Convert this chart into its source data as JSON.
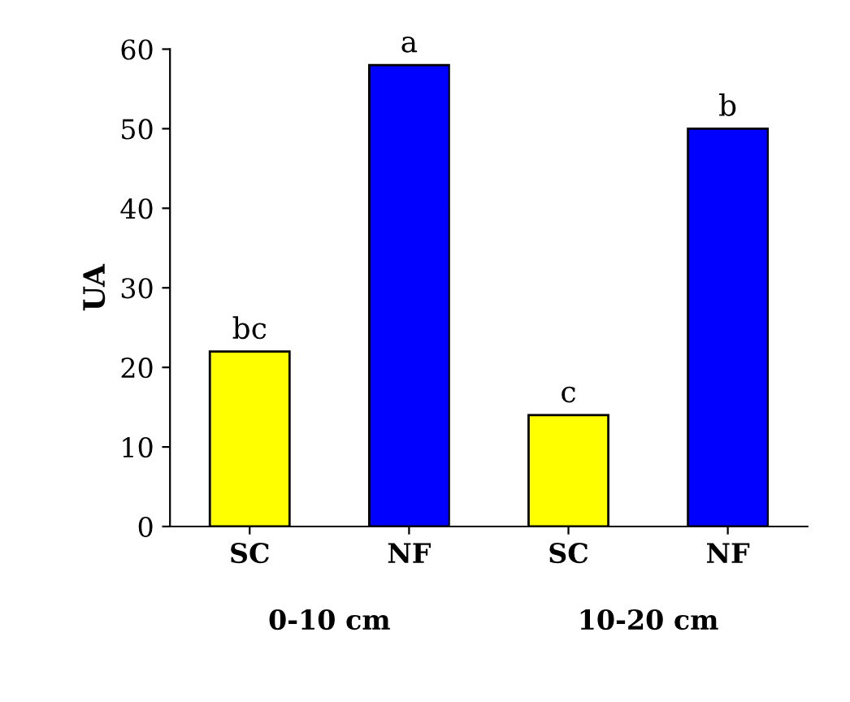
{
  "chart_data": {
    "type": "bar",
    "ylabel": "UA",
    "categories": [
      "SC",
      "NF",
      "SC",
      "NF"
    ],
    "values": [
      22,
      58,
      14,
      50
    ],
    "colors": [
      "#ffff00",
      "#0000ff",
      "#ffff00",
      "#0000ff"
    ],
    "value_labels": [
      "bc",
      "a",
      "c",
      "b"
    ],
    "annotations": [
      "0-10 cm",
      "10-20 cm"
    ],
    "ylim": [
      0,
      60
    ],
    "yticks": [
      0,
      10,
      20,
      30,
      40,
      50,
      60
    ],
    "grid": false
  }
}
